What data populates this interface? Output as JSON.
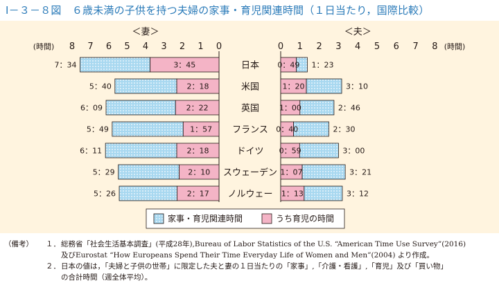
{
  "figure": {
    "title": "Ⅰ－３－８図　６歳未満の子供を持つ夫婦の家事・育児関連時間（１日当たり，国際比較）",
    "notes_head": "（備考）",
    "notes": [
      {
        "num": "１．",
        "lines": [
          "総務省「社会生活基本調査」(平成28年),Bureau of Labor Statistics of the U.S. “American Time Use Survey”(2016)",
          "及びEurostat “How Europeans Spend Their Time Everyday Life of Women and Men”(2004) より作成。"
        ]
      },
      {
        "num": "２．",
        "lines": [
          "日本の値は，「夫婦と子供の世帯」に限定した夫と妻の１日当たりの「家事」,「介護・看護」,「育児」及び「買い物」",
          "の合計時間（週全体平均）。"
        ]
      }
    ]
  },
  "colors": {
    "background": "#fff4df",
    "housework_fill": "#a8d8f0",
    "childcare_fill": "#f4b4c6",
    "outline": "#231815",
    "title": "#2b7bb9"
  },
  "chart_data": {
    "type": "bar",
    "orientation": "horizontal-butterfly",
    "categories": [
      "日本",
      "米国",
      "英国",
      "フランス",
      "ドイツ",
      "スウェーデン",
      "ノルウェー"
    ],
    "panels": {
      "wife": {
        "header": "＜妻＞",
        "axis_unit": "(時間)",
        "xlim": [
          0,
          8
        ],
        "ticks": [
          "0",
          "1",
          "2",
          "3",
          "4",
          "5",
          "6",
          "7",
          "8"
        ],
        "direction": "right-to-left",
        "total_labels": [
          "7：34",
          "5：40",
          "6：09",
          "5：49",
          "6：11",
          "5：29",
          "5：26"
        ],
        "childcare_labels": [
          "3：45",
          "2：18",
          "2：22",
          "1：57",
          "2：18",
          "2：10",
          "2：17"
        ],
        "total_hours": [
          7.5667,
          5.6667,
          6.15,
          5.8167,
          6.1833,
          5.4833,
          5.4333
        ],
        "childcare_hours": [
          3.75,
          2.3,
          2.3667,
          1.95,
          2.3,
          2.1667,
          2.2833
        ]
      },
      "husband": {
        "header": "＜夫＞",
        "axis_unit": "(時間)",
        "xlim": [
          0,
          8
        ],
        "ticks": [
          "0",
          "1",
          "2",
          "3",
          "4",
          "5",
          "6",
          "7",
          "8"
        ],
        "direction": "left-to-right",
        "total_labels": [
          "1：23",
          "3：10",
          "2：46",
          "2：30",
          "3：00",
          "3：21",
          "3：12"
        ],
        "childcare_labels": [
          "0：49",
          "1：20",
          "1：00",
          "0：40",
          "0：59",
          "1：07",
          "1：13"
        ],
        "total_hours": [
          1.3833,
          3.1667,
          2.7667,
          2.5,
          3.0,
          3.35,
          3.2
        ],
        "childcare_hours": [
          0.8167,
          1.3333,
          1.0,
          0.6667,
          0.9833,
          1.1167,
          1.2167
        ]
      }
    },
    "legend": [
      {
        "key": "housework",
        "label": "家事・育児関連時間"
      },
      {
        "key": "childcare",
        "label": "うち育児の時間"
      }
    ],
    "legend_position": "bottom-center",
    "grid": false
  }
}
